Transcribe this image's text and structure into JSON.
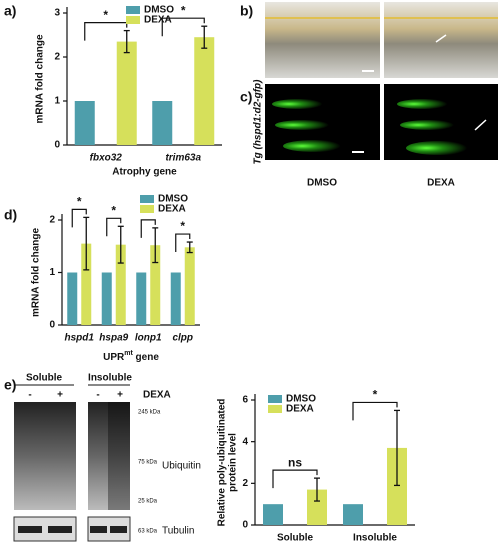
{
  "chart_data": [
    {
      "type": "bar",
      "y_label": "mRNA fold change",
      "x_label": "Atrophy gene",
      "categories": [
        "fbxo32",
        "trim63a"
      ],
      "italic_categories": true,
      "series": [
        {
          "name": "DMSO",
          "color": "#4e9eab",
          "values": [
            1,
            1
          ]
        },
        {
          "name": "DEXA",
          "color": "#d6e05b",
          "values": [
            2.35,
            2.45
          ],
          "errors": [
            0.25,
            0.25
          ]
        }
      ],
      "significance": [
        "*",
        "*"
      ],
      "ylim": [
        0,
        3
      ],
      "yticks": [
        0,
        1,
        2,
        3
      ]
    },
    {
      "type": "bar",
      "y_label": "mRNA fold change",
      "x_label_parts": [
        "UPR",
        "mt",
        " gene"
      ],
      "categories": [
        "hspd1",
        "hspa9",
        "lonp1",
        "clpp"
      ],
      "italic_categories": true,
      "series": [
        {
          "name": "DMSO",
          "color": "#4e9eab",
          "values": [
            1,
            1,
            1,
            1
          ]
        },
        {
          "name": "DEXA",
          "color": "#d6e05b",
          "values": [
            1.55,
            1.53,
            1.52,
            1.48
          ],
          "errors": [
            0.5,
            0.35,
            0.33,
            0.1
          ]
        }
      ],
      "significance": [
        "*",
        "*",
        "*",
        "*"
      ],
      "ylim": [
        0,
        2
      ],
      "yticks": [
        0,
        1,
        2
      ]
    },
    {
      "type": "bar",
      "y_label": [
        "Relative poly-ubiquitinated",
        "protein level"
      ],
      "categories": [
        "Soluble",
        "Insoluble"
      ],
      "italic_categories": false,
      "series": [
        {
          "name": "DMSO",
          "color": "#4e9eab",
          "values": [
            1,
            1
          ]
        },
        {
          "name": "DEXA",
          "color": "#d6e05b",
          "values": [
            1.7,
            3.7
          ],
          "errors": [
            0.55,
            1.8
          ]
        }
      ],
      "significance": [
        "ns",
        "*"
      ],
      "ylim": [
        0,
        6
      ],
      "yticks": [
        0,
        2,
        4,
        6
      ]
    }
  ],
  "figure": {
    "panel_labels": [
      "a)",
      "b)",
      "c)",
      "d)",
      "e)"
    ],
    "image_conditions": [
      "DMSO",
      "DEXA"
    ],
    "transgene_label": "Tg (hspd1:d2-gfp)",
    "blot": {
      "groups": [
        "Soluble",
        "Insoluble"
      ],
      "treatment": "DEXA",
      "lanes": [
        "-",
        "+",
        "-",
        "+"
      ],
      "markers": [
        "245 kDa",
        "75 kDa",
        "25 kDa",
        "63 kDa"
      ],
      "proteins": [
        "Ubiquitin",
        "Tubulin"
      ]
    }
  }
}
